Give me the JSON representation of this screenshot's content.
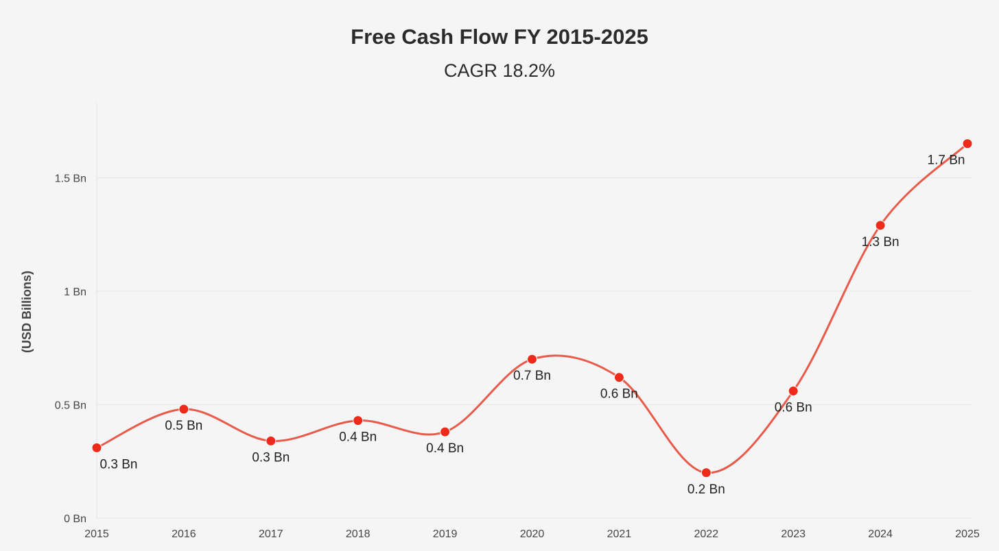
{
  "chart_data": {
    "type": "line",
    "title": "Free Cash Flow FY 2015-2025",
    "subtitle": "CAGR 18.2%",
    "xlabel": "",
    "ylabel": "(USD Billions)",
    "categories": [
      "2015",
      "2016",
      "2017",
      "2018",
      "2019",
      "2020",
      "2021",
      "2022",
      "2023",
      "2024",
      "2025"
    ],
    "series": [
      {
        "name": "Free Cash Flow",
        "values": [
          0.31,
          0.48,
          0.34,
          0.43,
          0.38,
          0.7,
          0.62,
          0.2,
          0.56,
          1.29,
          1.65
        ],
        "labels": [
          "0.3 Bn",
          "0.5 Bn",
          "0.3 Bn",
          "0.4 Bn",
          "0.4 Bn",
          "0.7 Bn",
          "0.6 Bn",
          "0.2 Bn",
          "0.6 Bn",
          "1.3 Bn",
          "1.7 Bn"
        ]
      }
    ],
    "yticks": [
      {
        "value": 0,
        "label": "0 Bn"
      },
      {
        "value": 0.5,
        "label": "0.5 Bn"
      },
      {
        "value": 1,
        "label": "1 Bn"
      },
      {
        "value": 1.5,
        "label": "1.5 Bn"
      }
    ],
    "ylim": [
      0,
      1.83
    ],
    "grid": true,
    "legend": "none",
    "colors": {
      "line": "#e85a4a",
      "marker": "#ee2a1b",
      "grid": "#e6e6e6",
      "axis": "#e2e2e2"
    }
  }
}
